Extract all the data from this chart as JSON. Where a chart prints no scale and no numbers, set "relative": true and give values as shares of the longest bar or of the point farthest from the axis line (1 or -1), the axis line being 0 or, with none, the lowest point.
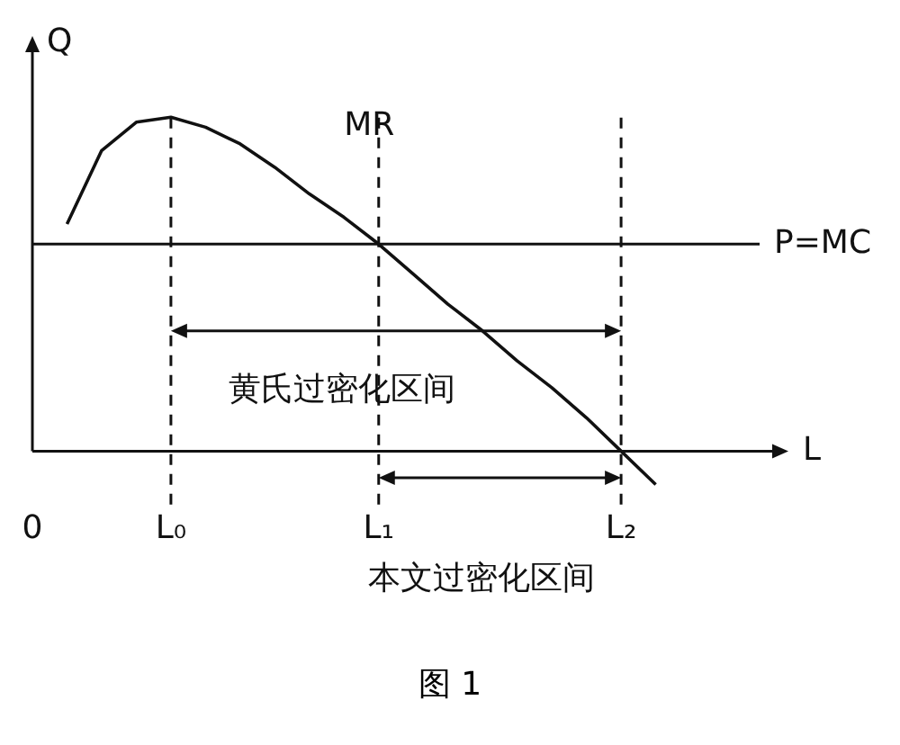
{
  "chart_data": {
    "type": "line",
    "relative": true,
    "xlabel": "L",
    "ylabel": "Q",
    "categories": [
      "0",
      null,
      null,
      null,
      "L₀",
      null,
      null,
      null,
      null,
      null,
      "L₁",
      null,
      null,
      null,
      null,
      null,
      null,
      "L₂",
      null,
      null,
      null,
      null
    ],
    "series": [
      {
        "name": "MR",
        "color": "#111111",
        "values": [
          null,
          0.68,
          0.9,
          0.985,
          1,
          0.97,
          0.92,
          0.85,
          0.77,
          0.7,
          0.62,
          0.53,
          0.44,
          0.36,
          0.27,
          0.19,
          0.1,
          0,
          -0.1,
          null,
          null,
          null
        ]
      }
    ],
    "ref_lines": [
      {
        "axis": "y",
        "value": 0.62,
        "label": "P=MC"
      },
      {
        "axis": "x",
        "value": "L₀",
        "line_style": "dashed"
      },
      {
        "axis": "x",
        "value": "L₁",
        "line_style": "dashed"
      },
      {
        "axis": "x",
        "value": "L₂",
        "line_style": "dashed"
      }
    ],
    "annotations": [
      "黄氏过密化区间",
      "本文过密化区间",
      "图 1"
    ],
    "grid": false,
    "legend": false,
    "marker": "none",
    "line_style": "solid"
  }
}
